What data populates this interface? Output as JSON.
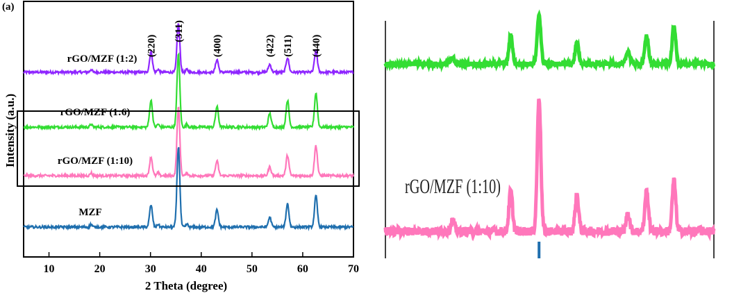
{
  "figure": {
    "panel_label": "(a)"
  },
  "chart_data": [
    {
      "type": "line",
      "title": "",
      "xlabel": "2 Theta (degree)",
      "ylabel": "Intensity (a.u.)",
      "xlim": [
        5,
        70
      ],
      "x_ticks": [
        10,
        20,
        30,
        40,
        50,
        60,
        70
      ],
      "y_ticks_shown": false,
      "grid": false,
      "legend": "none",
      "peaks_x": [
        30.1,
        35.5,
        43.1,
        53.5,
        57.0,
        62.6
      ],
      "peak_labels": [
        {
          "label": "(220)",
          "x": 30.1
        },
        {
          "label": "(311)",
          "x": 35.5
        },
        {
          "label": "(400)",
          "x": 43.1
        },
        {
          "label": "(422)",
          "x": 53.5
        },
        {
          "label": "(511)",
          "x": 57.0
        },
        {
          "label": "(440)",
          "x": 62.6
        }
      ],
      "series": [
        {
          "name": "rGO/MZF (1:2)",
          "color": "#8f26ff",
          "offset": 3,
          "peak_heights": [
            0.42,
            1.0,
            0.26,
            0.16,
            0.3,
            0.45
          ]
        },
        {
          "name": "rGO/MZF (1:6)",
          "color": "#33dd33",
          "offset": 2,
          "peak_heights": [
            0.55,
            1.5,
            0.42,
            0.28,
            0.55,
            0.7
          ]
        },
        {
          "name": "rGO/MZF (1:10)",
          "color": "#ff77bb",
          "offset": 1,
          "peak_heights": [
            0.38,
            1.4,
            0.3,
            0.18,
            0.42,
            0.62
          ]
        },
        {
          "name": "MZF",
          "color": "#1f6fae",
          "offset": 0,
          "peak_heights": [
            0.45,
            1.65,
            0.35,
            0.2,
            0.48,
            0.64
          ]
        }
      ],
      "highlight_box_series": [
        "rGO/MZF (1:6)",
        "rGO/MZF (1:10)"
      ]
    },
    {
      "type": "line",
      "title": "",
      "xlabel": "",
      "ylabel": "",
      "description_role": "zoomed inset of highlighted region",
      "visible_label": "rGO/MZF (1:10)",
      "series": [
        {
          "name": "",
          "color": "#33dd33"
        },
        {
          "name": "",
          "color": "#ff77bb"
        },
        {
          "name": "",
          "color": "#1f6fae"
        }
      ]
    }
  ]
}
